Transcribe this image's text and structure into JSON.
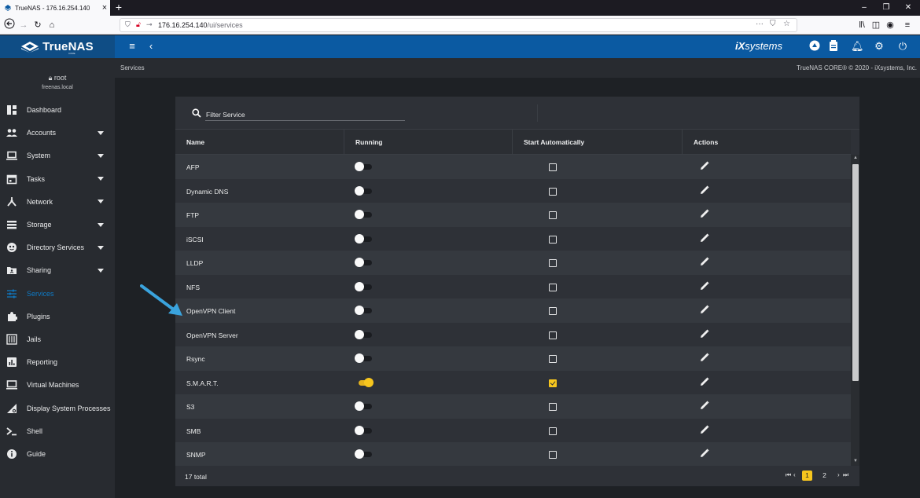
{
  "browser": {
    "tab_title": "TrueNAS - 176.16.254.140",
    "url_host": "176.16.254.140",
    "url_path": "/ui/services",
    "new_tab_glyph": "+"
  },
  "app": {
    "brand": "TrueNAS",
    "brand_sub": "CORE",
    "vendor": "systems",
    "breadcrumb": "Services",
    "copyright": "TrueNAS CORE® © 2020 - iXsystems, Inc."
  },
  "user": {
    "name": "root",
    "host": "freenas.local"
  },
  "sidebar": {
    "items": [
      {
        "label": "Dashboard",
        "icon": "dashboard-icon",
        "expandable": false
      },
      {
        "label": "Accounts",
        "icon": "people-icon",
        "expandable": true
      },
      {
        "label": "System",
        "icon": "laptop-icon",
        "expandable": true
      },
      {
        "label": "Tasks",
        "icon": "calendar-icon",
        "expandable": true
      },
      {
        "label": "Network",
        "icon": "network-icon",
        "expandable": true
      },
      {
        "label": "Storage",
        "icon": "storage-icon",
        "expandable": true
      },
      {
        "label": "Directory Services",
        "icon": "directory-icon",
        "expandable": true
      },
      {
        "label": "Sharing",
        "icon": "folder-share-icon",
        "expandable": true
      },
      {
        "label": "Services",
        "icon": "tune-icon",
        "expandable": false,
        "active": true
      },
      {
        "label": "Plugins",
        "icon": "puzzle-icon",
        "expandable": false
      },
      {
        "label": "Jails",
        "icon": "jail-icon",
        "expandable": false
      },
      {
        "label": "Reporting",
        "icon": "chart-icon",
        "expandable": false
      },
      {
        "label": "Virtual Machines",
        "icon": "computer-icon",
        "expandable": false
      },
      {
        "label": "Display System Processes",
        "icon": "processes-icon",
        "expandable": false
      },
      {
        "label": "Shell",
        "icon": "shell-icon",
        "expandable": false
      },
      {
        "label": "Guide",
        "icon": "info-icon",
        "expandable": false
      }
    ]
  },
  "services_table": {
    "filter_placeholder": "Filter Service",
    "columns": [
      "Name",
      "Running",
      "Start Automatically",
      "Actions"
    ],
    "rows": [
      {
        "name": "AFP",
        "running": false,
        "start_auto": false
      },
      {
        "name": "Dynamic DNS",
        "running": false,
        "start_auto": false
      },
      {
        "name": "FTP",
        "running": false,
        "start_auto": false
      },
      {
        "name": "iSCSI",
        "running": false,
        "start_auto": false
      },
      {
        "name": "LLDP",
        "running": false,
        "start_auto": false
      },
      {
        "name": "NFS",
        "running": false,
        "start_auto": false
      },
      {
        "name": "OpenVPN Client",
        "running": false,
        "start_auto": false
      },
      {
        "name": "OpenVPN Server",
        "running": false,
        "start_auto": false
      },
      {
        "name": "Rsync",
        "running": false,
        "start_auto": false
      },
      {
        "name": "S.M.A.R.T.",
        "running": true,
        "start_auto": true
      },
      {
        "name": "S3",
        "running": false,
        "start_auto": false
      },
      {
        "name": "SMB",
        "running": false,
        "start_auto": false
      },
      {
        "name": "SNMP",
        "running": false,
        "start_auto": false
      }
    ],
    "total": "17 total",
    "pages": [
      "1",
      "2"
    ],
    "current_page": "1"
  },
  "colors": {
    "topbar": "#0b5aa2",
    "sidebar": "#282b30",
    "accent_yellow": "#f7c61e",
    "active_nav": "#0e7bc7",
    "annotation_arrow": "#3aa3dd"
  }
}
